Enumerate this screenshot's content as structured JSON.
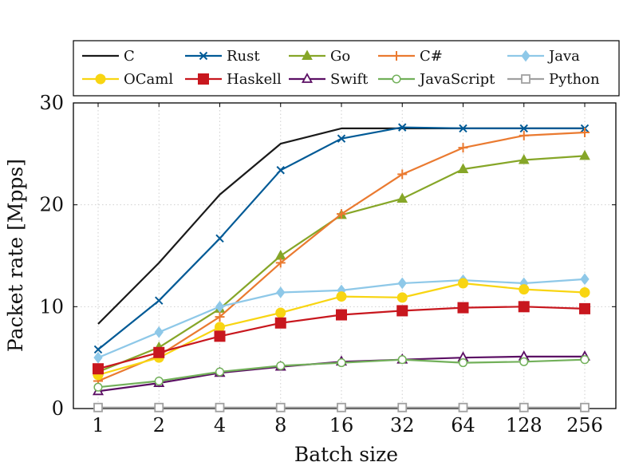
{
  "chart_data": {
    "type": "line",
    "title": "",
    "xlabel": "Batch size",
    "ylabel": "Packet rate [Mpps]",
    "x": [
      "1",
      "2",
      "4",
      "8",
      "16",
      "32",
      "64",
      "128",
      "256"
    ],
    "ylim": [
      0,
      30
    ],
    "yticks": [
      "0",
      "10",
      "20",
      "30"
    ],
    "grid": true,
    "legend_position": "top",
    "series": [
      {
        "name": "C",
        "color": "#1a1a1a",
        "marker": "none",
        "values": [
          8.3,
          14.3,
          21.0,
          26.0,
          27.5,
          27.5,
          27.5,
          27.5,
          27.5
        ]
      },
      {
        "name": "Rust",
        "color": "#005a96",
        "marker": "x",
        "values": [
          5.8,
          10.6,
          16.7,
          23.4,
          26.5,
          27.6,
          27.5,
          27.5,
          27.5
        ]
      },
      {
        "name": "Go",
        "color": "#86a628",
        "marker": "triangle",
        "values": [
          3.6,
          6.0,
          9.8,
          15.0,
          19.0,
          20.6,
          23.5,
          24.4,
          24.8
        ]
      },
      {
        "name": "C#",
        "color": "#ea7a30",
        "marker": "plus",
        "values": [
          2.7,
          5.2,
          9.0,
          14.3,
          19.1,
          23.0,
          25.6,
          26.8,
          27.1
        ]
      },
      {
        "name": "Java",
        "color": "#8ec8e8",
        "marker": "diamond",
        "values": [
          5.0,
          7.5,
          10.0,
          11.4,
          11.6,
          12.3,
          12.6,
          12.3,
          12.7
        ]
      },
      {
        "name": "OCaml",
        "color": "#f8d512",
        "marker": "circle",
        "values": [
          3.3,
          5.0,
          8.0,
          9.4,
          11.0,
          10.9,
          12.3,
          11.7,
          11.4
        ]
      },
      {
        "name": "Haskell",
        "color": "#c8171e",
        "marker": "square",
        "values": [
          3.9,
          5.5,
          7.1,
          8.4,
          9.2,
          9.6,
          9.9,
          10.0,
          9.8
        ]
      },
      {
        "name": "Swift",
        "color": "#5b0f64",
        "marker": "triangle-open",
        "values": [
          1.7,
          2.5,
          3.5,
          4.1,
          4.6,
          4.8,
          5.0,
          5.1,
          5.1
        ]
      },
      {
        "name": "JavaScript",
        "color": "#72b05a",
        "marker": "circle-open",
        "values": [
          2.1,
          2.7,
          3.6,
          4.2,
          4.5,
          4.8,
          4.5,
          4.6,
          4.8
        ]
      },
      {
        "name": "Python",
        "color": "#a0a0a0",
        "marker": "square-open",
        "values": [
          0.1,
          0.1,
          0.1,
          0.1,
          0.1,
          0.1,
          0.1,
          0.1,
          0.1
        ]
      }
    ]
  }
}
